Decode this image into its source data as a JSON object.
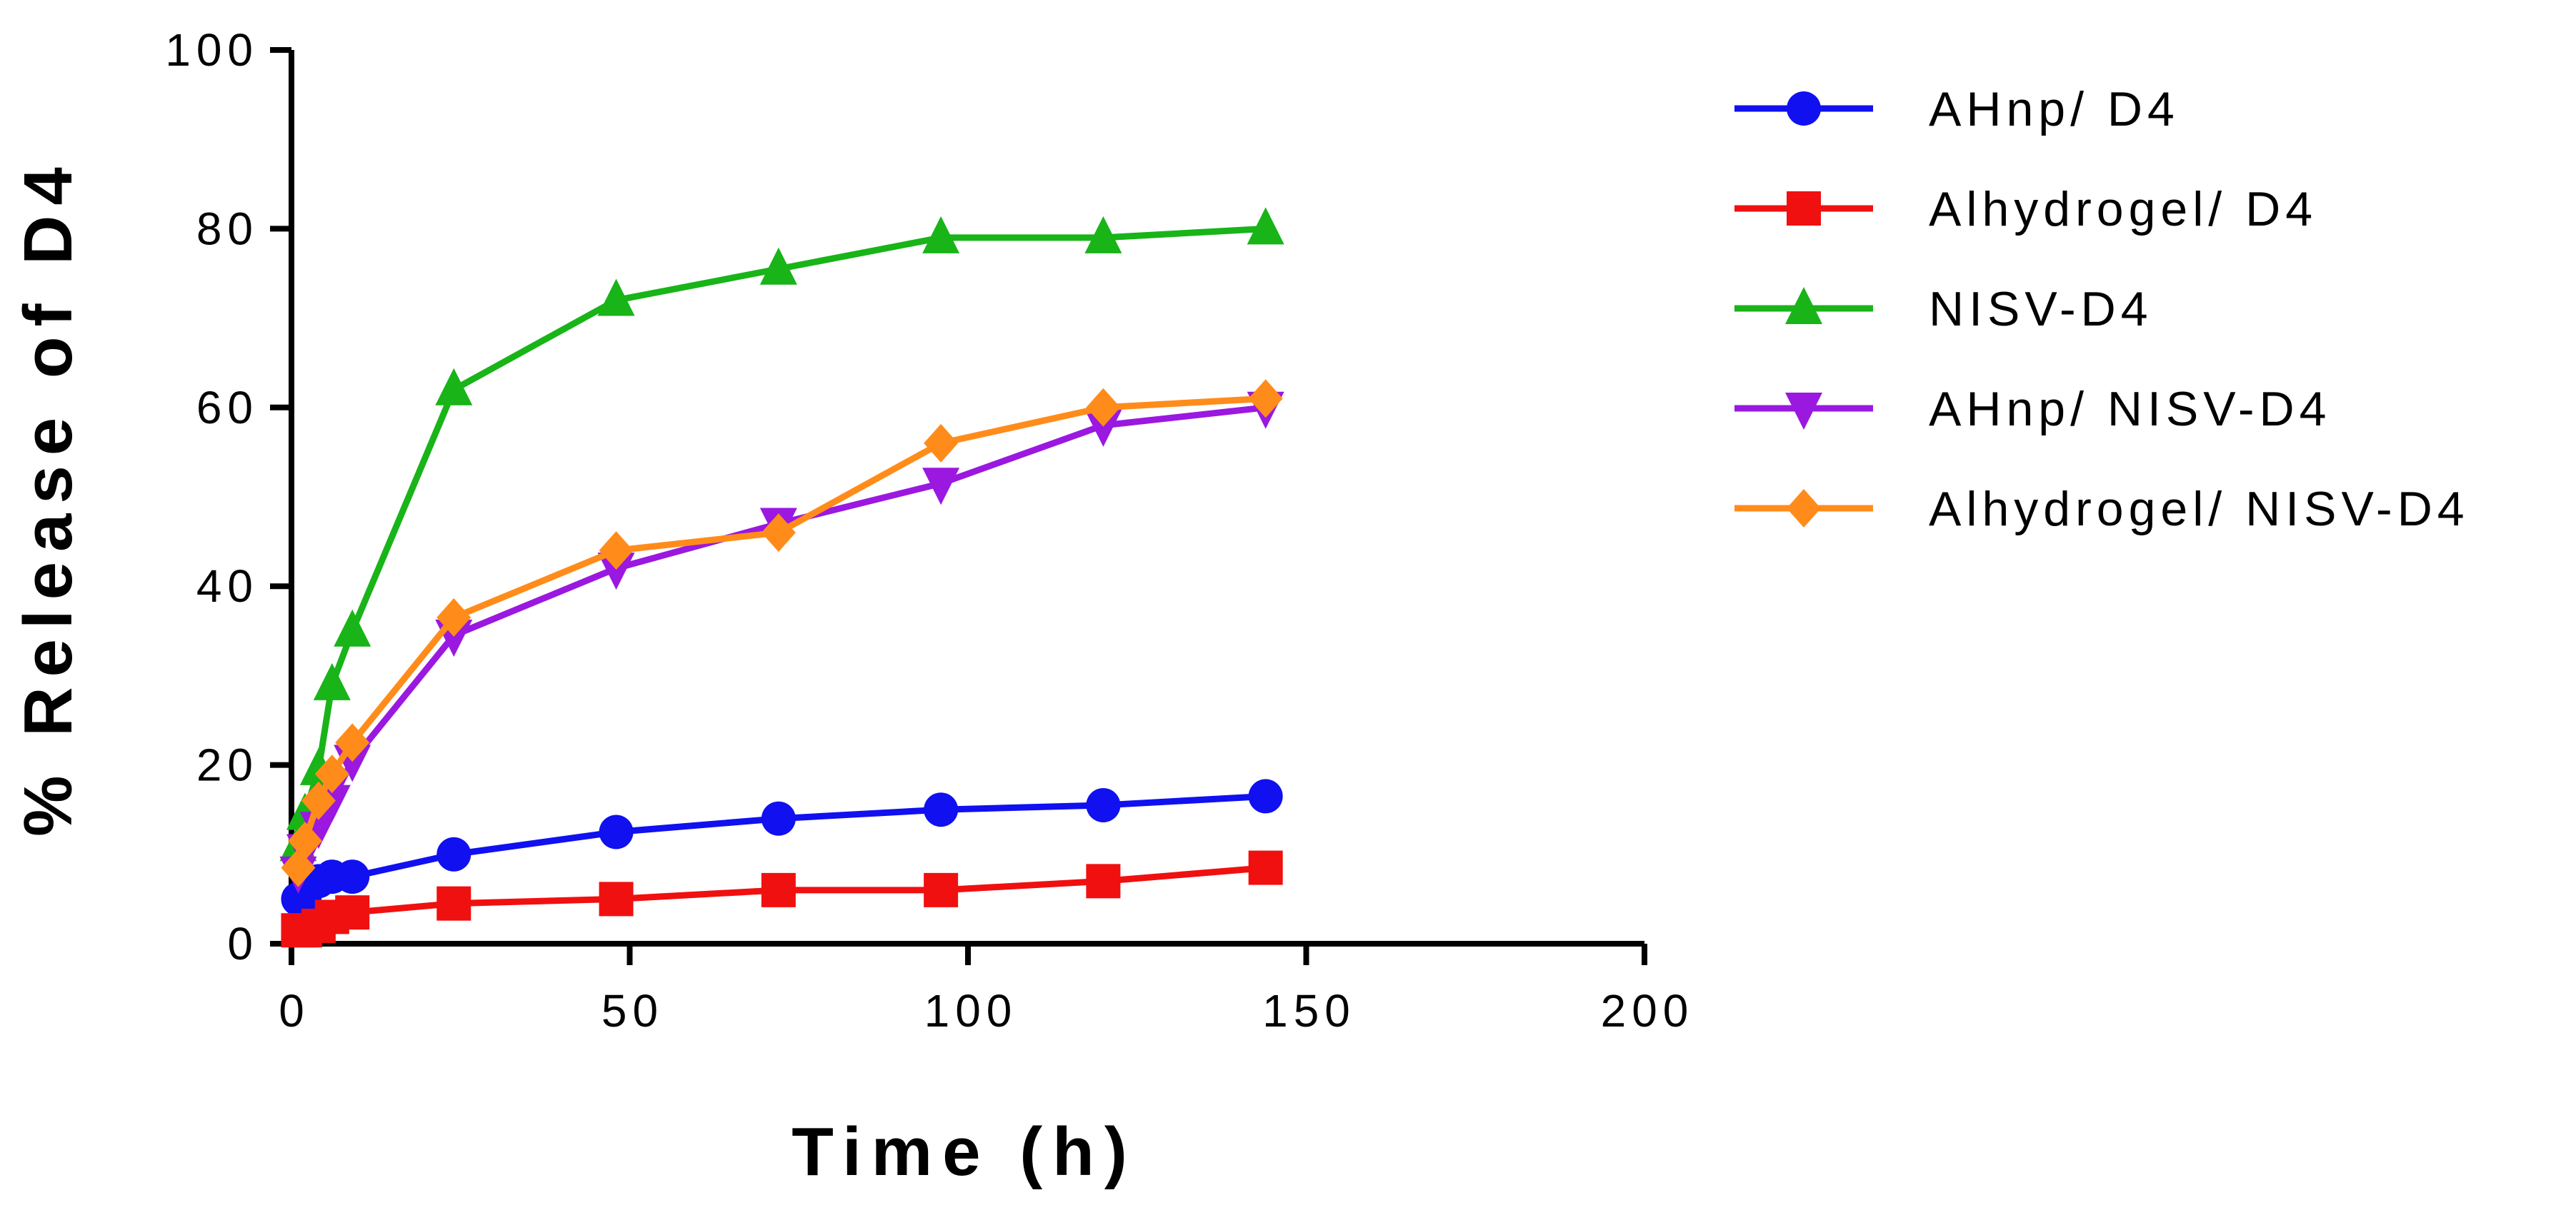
{
  "chart_data": {
    "type": "line",
    "title": "",
    "xlabel": "Time (h)",
    "ylabel": "% Release of D4",
    "xlim": [
      0,
      200
    ],
    "ylim": [
      0,
      100
    ],
    "xticks": [
      0,
      50,
      100,
      150,
      200
    ],
    "yticks": [
      0,
      20,
      40,
      60,
      80,
      100
    ],
    "x_tick_labels": [
      "0",
      "50",
      "100",
      "150",
      "200"
    ],
    "y_tick_labels": [
      "0",
      "20",
      "40",
      "60",
      "80",
      "100"
    ],
    "grid": false,
    "legend_position": "right",
    "series": [
      {
        "name": "AHnp/ D4",
        "color": "#1010f0",
        "marker": "circle",
        "x": [
          1,
          2,
          4,
          6,
          9,
          24,
          48,
          72,
          96,
          120,
          144
        ],
        "y": [
          5,
          5.5,
          7,
          7.5,
          7.5,
          10,
          12.5,
          14,
          15,
          15.5,
          16.5
        ]
      },
      {
        "name": "Alhydrogel/ D4",
        "color": "#f01010",
        "marker": "square",
        "x": [
          1,
          2,
          4,
          6,
          9,
          24,
          48,
          72,
          96,
          120,
          144
        ],
        "y": [
          1.5,
          1.5,
          2,
          3,
          3.5,
          4.5,
          5,
          6,
          6,
          7,
          8.5
        ]
      },
      {
        "name": "NISV-D4",
        "color": "#18b418",
        "marker": "triangle-up",
        "x": [
          1,
          2,
          4,
          6,
          9,
          24,
          48,
          72,
          96,
          120,
          144
        ],
        "y": [
          11,
          14.5,
          19.5,
          29,
          35,
          62,
          72,
          75.5,
          79,
          79,
          80
        ]
      },
      {
        "name": "AHnp/ NISV-D4",
        "color": "#9a18e0",
        "marker": "triangle-down",
        "x": [
          1,
          2,
          4,
          6,
          9,
          24,
          48,
          72,
          96,
          120,
          144
        ],
        "y": [
          8,
          10.5,
          13,
          16,
          20.5,
          34.5,
          42,
          47,
          51.5,
          58,
          60
        ]
      },
      {
        "name": "Alhydrogel/ NISV-D4",
        "color": "#ff8c1a",
        "marker": "diamond",
        "x": [
          1,
          2,
          4,
          6,
          9,
          24,
          48,
          72,
          96,
          120,
          144
        ],
        "y": [
          8.5,
          11.5,
          16,
          19,
          22.5,
          36.5,
          44,
          46,
          56,
          60,
          61
        ]
      }
    ]
  }
}
